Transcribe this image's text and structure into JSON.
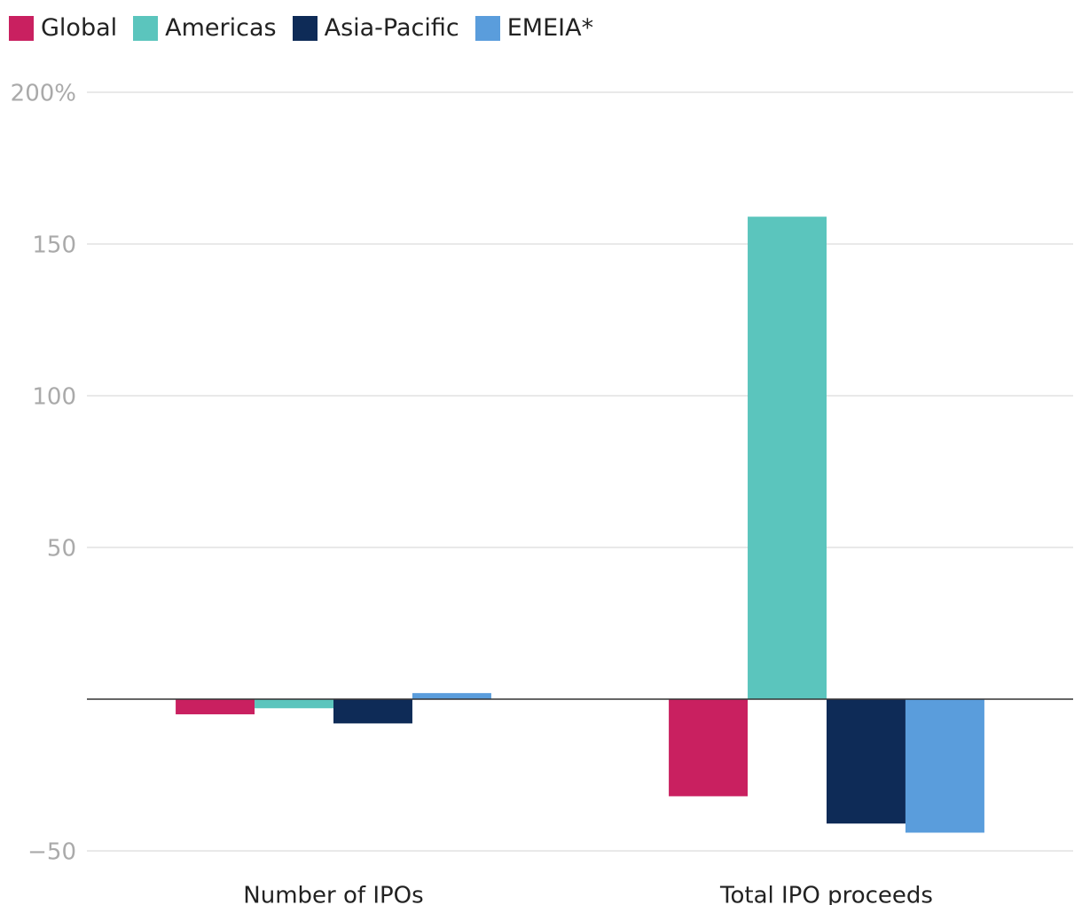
{
  "chart_data": {
    "type": "bar",
    "categories": [
      "Number of IPOs",
      "Total IPO proceeds"
    ],
    "series": [
      {
        "name": "Global",
        "color": "#c92060",
        "values": [
          -5,
          -32
        ]
      },
      {
        "name": "Americas",
        "color": "#5bc5bd",
        "values": [
          -3,
          159
        ]
      },
      {
        "name": "Asia-Pacific",
        "color": "#0e2b57",
        "values": [
          -8,
          -41
        ]
      },
      {
        "name": "EMEIA*",
        "color": "#5a9ddc",
        "values": [
          2,
          -44
        ]
      }
    ],
    "ylim": [
      -50,
      200
    ],
    "yticks": [
      {
        "value": -50,
        "label": "−50"
      },
      50,
      100,
      150,
      {
        "value": 200,
        "label": "200%"
      }
    ],
    "grid": true,
    "legend": "top-left"
  }
}
